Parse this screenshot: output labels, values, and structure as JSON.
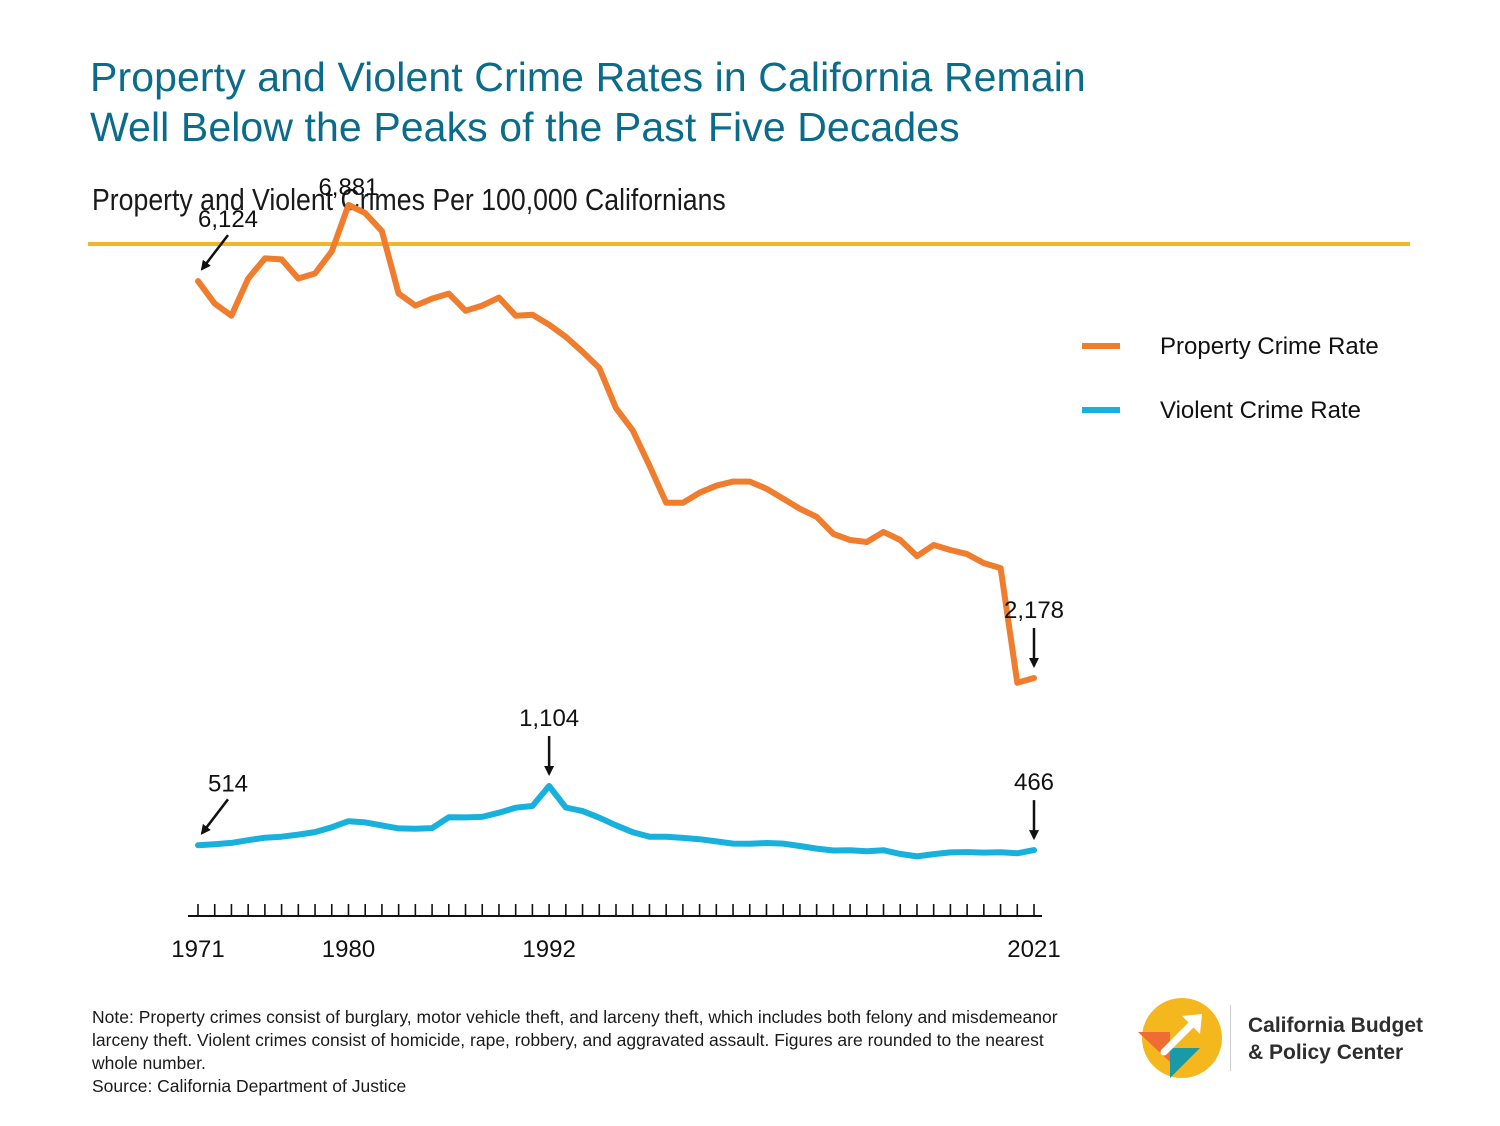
{
  "header": {
    "title_line1": "Property and Violent Crime Rates in California Remain",
    "title_line2": "Well Below the Peaks of the Past Five Decades",
    "subtitle": "Property and Violent Crimes Per 100,000 Californians"
  },
  "colors": {
    "property": "#ef7d2d",
    "violent": "#18b0dd",
    "accent_rule": "#f0b72c",
    "title": "#0b6b8a"
  },
  "chart_data": {
    "type": "line",
    "title": "Property and Violent Crimes Per 100,000 Californians",
    "xlabel": "",
    "ylabel": "",
    "x_range": [
      1971,
      2021
    ],
    "y_range": [
      0,
      7000
    ],
    "x_tick_labels": [
      "1971",
      "1980",
      "1992",
      "2021"
    ],
    "grid": false,
    "legend_position": "top-right",
    "x": [
      1971,
      1972,
      1973,
      1974,
      1975,
      1976,
      1977,
      1978,
      1979,
      1980,
      1981,
      1982,
      1983,
      1984,
      1985,
      1986,
      1987,
      1988,
      1989,
      1990,
      1991,
      1992,
      1993,
      1994,
      1995,
      1996,
      1997,
      1998,
      1999,
      2000,
      2001,
      2002,
      2003,
      2004,
      2005,
      2006,
      2007,
      2008,
      2009,
      2010,
      2011,
      2012,
      2013,
      2014,
      2015,
      2016,
      2017,
      2018,
      2019,
      2020,
      2021
    ],
    "series": [
      {
        "name": "Property Crime Rate",
        "color": "#ef7d2d",
        "values": [
          6124,
          5900,
          5780,
          6150,
          6350,
          6340,
          6150,
          6200,
          6420,
          6881,
          6800,
          6620,
          6000,
          5880,
          5950,
          6000,
          5830,
          5880,
          5960,
          5780,
          5790,
          5690,
          5570,
          5420,
          5260,
          4860,
          4640,
          4290,
          3920,
          3920,
          4020,
          4090,
          4130,
          4130,
          4060,
          3960,
          3860,
          3780,
          3610,
          3550,
          3530,
          3630,
          3550,
          3390,
          3500,
          3450,
          3410,
          3320,
          3270,
          2130,
          2178
        ]
      },
      {
        "name": "Violent Crime Rate",
        "color": "#18b0dd",
        "values": [
          514,
          525,
          538,
          565,
          590,
          600,
          620,
          645,
          694,
          754,
          742,
          712,
          682,
          679,
          685,
          793,
          791,
          796,
          838,
          888,
          905,
          1104,
          890,
          854,
          788,
          713,
          644,
          600,
          599,
          588,
          575,
          553,
          531,
          529,
          537,
          531,
          507,
          481,
          462,
          465,
          454,
          465,
          429,
          404,
          427,
          443,
          446,
          441,
          444,
          435,
          466
        ]
      }
    ],
    "annotations": [
      {
        "series": "Property Crime Rate",
        "year": 1971,
        "label": "6,124"
      },
      {
        "series": "Property Crime Rate",
        "year": 1980,
        "label": "6,881"
      },
      {
        "series": "Property Crime Rate",
        "year": 2021,
        "label": "2,178"
      },
      {
        "series": "Violent Crime Rate",
        "year": 1971,
        "label": "514"
      },
      {
        "series": "Violent Crime Rate",
        "year": 1992,
        "label": "1,104"
      },
      {
        "series": "Violent Crime Rate",
        "year": 2021,
        "label": "466"
      }
    ]
  },
  "note": {
    "text": "Note: Property crimes consist of burglary, motor vehicle theft, and larceny theft, which includes both felony and misdemeanor larceny theft. Violent crimes consist of homicide, rape, robbery, and aggravated assault. Figures are rounded to the nearest whole number.",
    "source": "Source: California Department of Justice"
  },
  "logo": {
    "line1": "California Budget",
    "line2": "& Policy Center"
  }
}
